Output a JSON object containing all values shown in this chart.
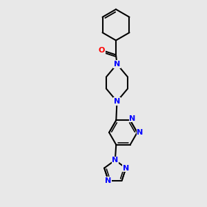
{
  "bg_color": "#e8e8e8",
  "bond_color": "#000000",
  "N_color": "#0000ff",
  "O_color": "#ff0000",
  "line_width": 1.5,
  "fig_size": [
    3.0,
    3.0
  ],
  "dpi": 100,
  "xlim": [
    0,
    6
  ],
  "ylim": [
    0,
    10
  ]
}
